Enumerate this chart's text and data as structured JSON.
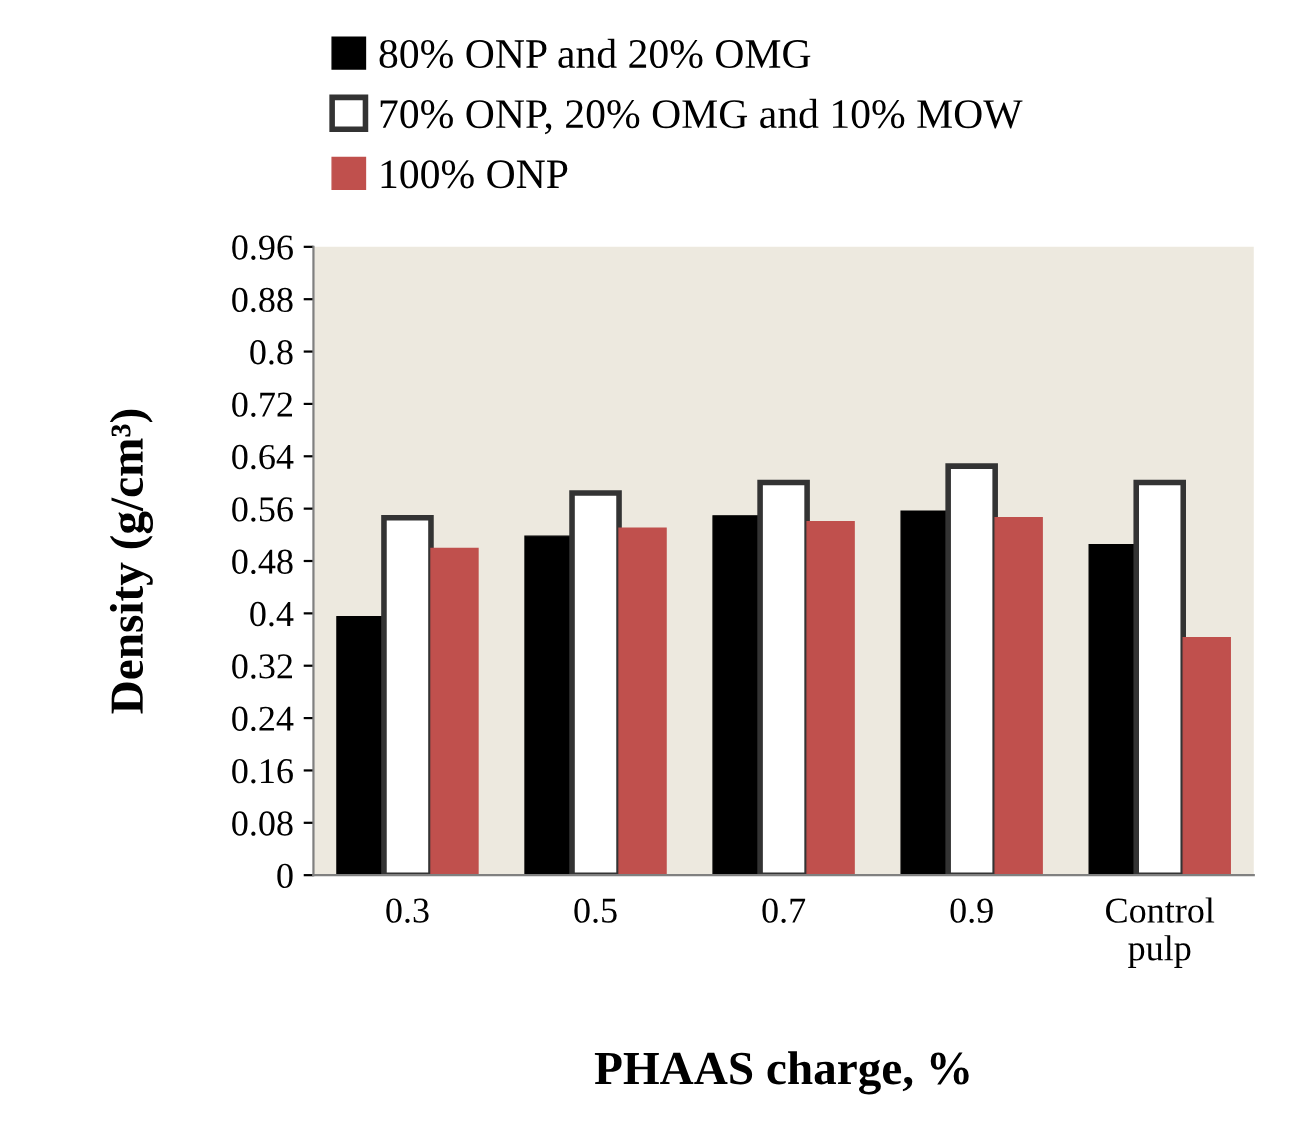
{
  "chart_data": {
    "type": "bar",
    "xlabel": "PHAAS charge, %",
    "ylabel": "Density (g/cm³)",
    "categories": [
      "0.3",
      "0.5",
      "0.7",
      "0.9",
      "Control\npulp"
    ],
    "series": [
      {
        "name": "80% ONP and 20% OMG",
        "color": "#000000",
        "values": [
          0.395,
          0.518,
          0.549,
          0.556,
          0.505
        ]
      },
      {
        "name": "70% ONP, 20% OMG and 10% MOW",
        "color": "#ffffff",
        "values": [
          0.546,
          0.584,
          0.6,
          0.625,
          0.6
        ]
      },
      {
        "name": "100% ONP",
        "color": "#c0504d",
        "values": [
          0.499,
          0.53,
          0.54,
          0.546,
          0.363
        ]
      }
    ],
    "ylim": [
      0,
      0.96
    ],
    "yticks": [
      0,
      0.08,
      0.16,
      0.24,
      0.32,
      0.4,
      0.48,
      0.56,
      0.64,
      0.72,
      0.8,
      0.88,
      0.96
    ],
    "grid": false,
    "legend": "top left"
  }
}
